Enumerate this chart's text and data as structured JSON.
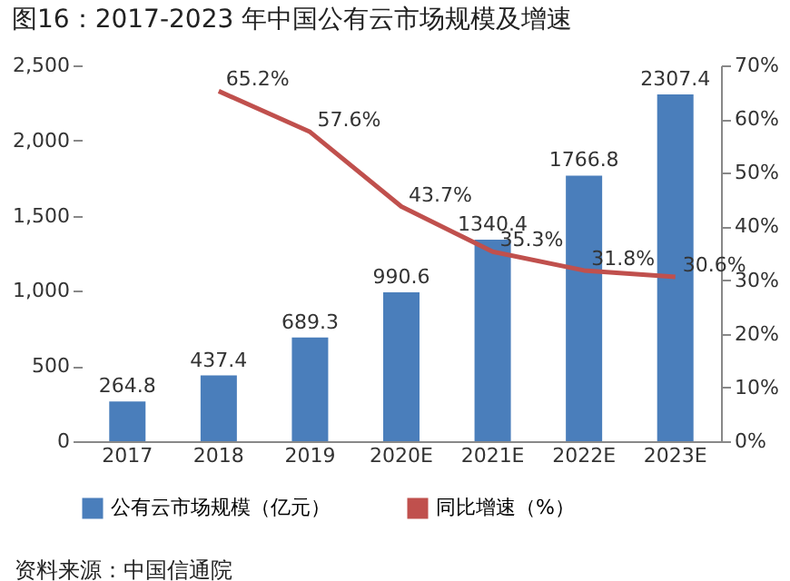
{
  "chart_data": {
    "type": "bar",
    "title": "图16：2017-2023 年中国公有云市场规模及增速",
    "categories": [
      "2017",
      "2018",
      "2019",
      "2020E",
      "2021E",
      "2022E",
      "2023E"
    ],
    "series": [
      {
        "name": "公有云市场规模（亿元）",
        "color": "#4a7ebb",
        "values": [
          264.8,
          437.4,
          689.3,
          990.6,
          1340.4,
          1766.8,
          2307.4
        ],
        "value_labels": [
          "264.8",
          "437.4",
          "689.3",
          "990.6",
          "1340.4",
          "1766.8",
          "2307.4"
        ]
      },
      {
        "name": "同比增速（%）",
        "type": "line",
        "axis": "y2",
        "color": "#c0504d",
        "values": [
          null,
          65.2,
          57.6,
          43.7,
          35.3,
          31.8,
          30.6
        ],
        "value_labels": [
          null,
          "65.2%",
          "57.6%",
          "43.7%",
          "35.3%",
          "31.8%",
          "30.6%"
        ]
      }
    ],
    "ylim": [
      0,
      2500
    ],
    "yticks": [
      0,
      500,
      {
        "value": 1000,
        "label": "1,000"
      },
      {
        "value": 1500,
        "label": "1,500"
      },
      {
        "value": 2000,
        "label": "2,000"
      },
      {
        "value": 2500,
        "label": "2,500"
      }
    ],
    "y2lim": [
      0,
      70
    ],
    "y2ticks": [
      {
        "value": 0,
        "label": "0%"
      },
      {
        "value": 10,
        "label": "10%"
      },
      {
        "value": 20,
        "label": "20%"
      },
      {
        "value": 30,
        "label": "30%"
      },
      {
        "value": 40,
        "label": "40%"
      },
      {
        "value": 50,
        "label": "50%"
      },
      {
        "value": 60,
        "label": "60%"
      },
      {
        "value": 70,
        "label": "70%"
      }
    ],
    "legend": "bottom",
    "marker": "none",
    "line_style": "solid",
    "annotations": [
      "资料来源：中国信通院"
    ]
  }
}
